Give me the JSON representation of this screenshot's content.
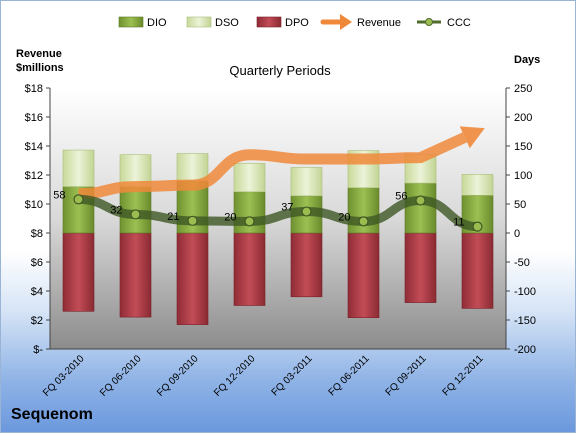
{
  "company": "Sequenom",
  "chart_data": {
    "type": "bar",
    "title": "Quarterly Periods",
    "left_axis": {
      "label_line1": "Revenue",
      "label_line2": "$millions",
      "ylim": [
        0,
        18
      ],
      "ticks": [
        0,
        2,
        4,
        6,
        8,
        10,
        12,
        14,
        16,
        18
      ],
      "tick_labels": [
        "$-",
        "$2",
        "$4",
        "$6",
        "$8",
        "$10",
        "$12",
        "$14",
        "$16",
        "$18"
      ]
    },
    "right_axis": {
      "label": "Days",
      "ylim": [
        -200,
        250
      ],
      "ticks": [
        -200,
        -150,
        -100,
        -50,
        0,
        50,
        100,
        150,
        200,
        250
      ],
      "tick_labels": [
        "-200",
        "-150",
        "-100",
        "-50",
        "0",
        "50",
        "100",
        "150",
        "200",
        "250"
      ]
    },
    "categories": [
      "FQ 03-2010",
      "FQ 06-2010",
      "FQ 09-2010",
      "FQ 12-2010",
      "FQ 03-2011",
      "FQ 06-2011",
      "FQ 09-2011",
      "FQ 12-2011"
    ],
    "legend": {
      "position": "top",
      "items": [
        {
          "label": "DIO",
          "kind": "bar",
          "color": "#8cb043"
        },
        {
          "label": "DSO",
          "kind": "bar",
          "color": "#d9e6b6"
        },
        {
          "label": "DPO",
          "kind": "bar",
          "color": "#b2404a"
        },
        {
          "label": "Revenue",
          "kind": "arrow",
          "color": "#f0883a"
        },
        {
          "label": "CCC",
          "kind": "line",
          "color": "#4f6b2e"
        }
      ]
    },
    "series": [
      {
        "name": "DIO",
        "axis": "right",
        "values": [
          80,
          80,
          90,
          71,
          64,
          78,
          86,
          65
        ]
      },
      {
        "name": "DSO",
        "axis": "right",
        "values": [
          63,
          55,
          47,
          49,
          49,
          64,
          49,
          36
        ]
      },
      {
        "name": "DPO",
        "axis": "right",
        "values": [
          -135,
          -145,
          -158,
          -125,
          -110,
          -146,
          -120,
          -130
        ]
      },
      {
        "name": "Revenue",
        "axis": "left",
        "values": [
          10.7,
          11.2,
          11.3,
          13.4,
          13.1,
          13.1,
          13.2,
          15.0
        ]
      },
      {
        "name": "CCC",
        "axis": "right",
        "values": [
          58,
          32,
          21,
          20,
          37,
          20,
          56,
          11
        ]
      }
    ],
    "ccc_labels": [
      "58",
      "32",
      "21",
      "20",
      "37",
      "20",
      "56",
      "11"
    ]
  }
}
